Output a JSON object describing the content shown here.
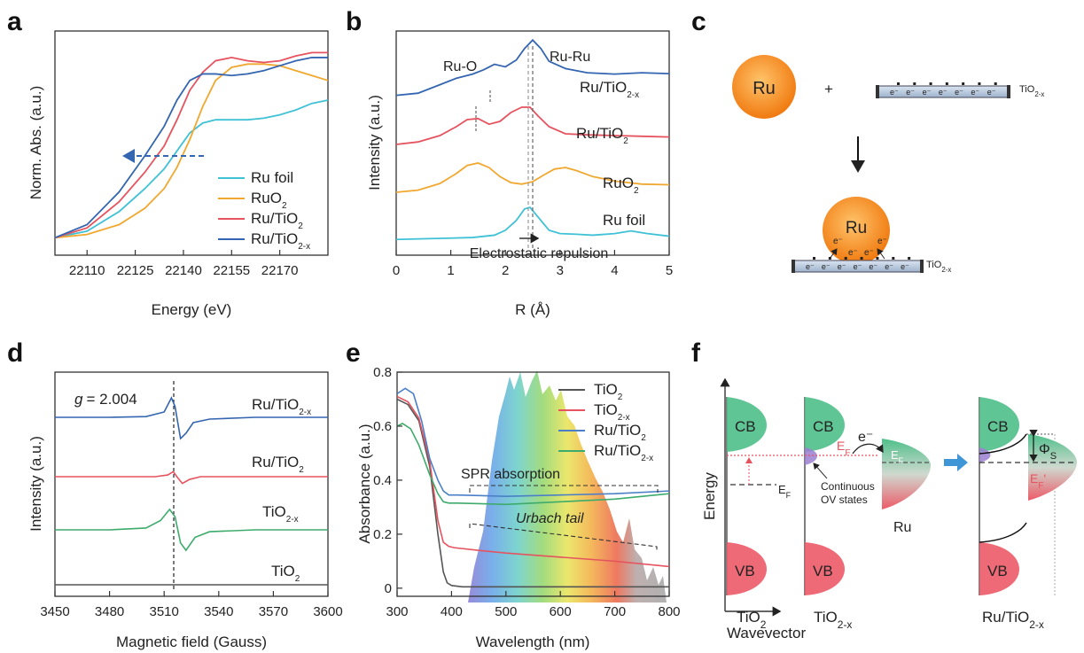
{
  "panel_labels": [
    "a",
    "b",
    "c",
    "d",
    "e",
    "f"
  ],
  "chart_data": [
    {
      "id": "a",
      "type": "line",
      "xlabel": "Energy (eV)",
      "ylabel": "Norm. Abs. (a.u.)",
      "xlim": [
        22100,
        22185
      ],
      "ylim": [
        0,
        1.3
      ],
      "xticks": [
        "22110",
        "22125",
        "22140",
        "22155",
        "22170"
      ],
      "legend_position": "bottom-right",
      "series": [
        {
          "name": "Ru foil",
          "name_sub": "",
          "color": "#3fc1d6",
          "x": [
            22100,
            22110,
            22120,
            22128,
            22134,
            22138,
            22142,
            22146,
            22150,
            22155,
            22160,
            22165,
            22170,
            22175,
            22180,
            22185
          ],
          "y": [
            0.02,
            0.06,
            0.18,
            0.32,
            0.44,
            0.55,
            0.66,
            0.72,
            0.74,
            0.74,
            0.74,
            0.75,
            0.77,
            0.8,
            0.84,
            0.86
          ]
        },
        {
          "name": "RuO",
          "name_sub": "2",
          "color": "#f0a830",
          "x": [
            22100,
            22110,
            22120,
            22128,
            22134,
            22138,
            22142,
            22146,
            22150,
            22155,
            22160,
            22165,
            22170,
            22175,
            22180,
            22185
          ],
          "y": [
            0.02,
            0.04,
            0.1,
            0.2,
            0.32,
            0.45,
            0.62,
            0.82,
            0.98,
            1.06,
            1.08,
            1.08,
            1.07,
            1.04,
            1.01,
            0.98
          ]
        },
        {
          "name": "Ru/TiO",
          "name_sub": "2",
          "color": "#e5535f",
          "x": [
            22100,
            22110,
            22120,
            22128,
            22134,
            22138,
            22142,
            22146,
            22150,
            22155,
            22160,
            22165,
            22170,
            22175,
            22180,
            22185
          ],
          "y": [
            0.02,
            0.08,
            0.24,
            0.42,
            0.58,
            0.74,
            0.92,
            1.03,
            1.1,
            1.12,
            1.1,
            1.09,
            1.1,
            1.13,
            1.15,
            1.15
          ]
        },
        {
          "name": "Ru/TiO",
          "name_sub": "2-x",
          "color": "#3465b0",
          "x": [
            22100,
            22110,
            22120,
            22128,
            22134,
            22138,
            22142,
            22146,
            22150,
            22155,
            22160,
            22165,
            22170,
            22175,
            22180,
            22185
          ],
          "y": [
            0.02,
            0.1,
            0.3,
            0.52,
            0.7,
            0.86,
            0.98,
            1.02,
            1.02,
            1.01,
            1.02,
            1.04,
            1.07,
            1.1,
            1.12,
            1.12
          ]
        }
      ],
      "annotations": [
        {
          "type": "arrow",
          "direction": "left",
          "color": "#3465b0",
          "x_from": 22147,
          "x_to": 22128,
          "y": 0.72
        }
      ]
    },
    {
      "id": "b",
      "type": "line",
      "xlabel": "R (Å)",
      "ylabel": "Intensity (a.u.)",
      "xlim": [
        0,
        5
      ],
      "xticks": [
        "0",
        "1",
        "2",
        "3",
        "4",
        "5"
      ],
      "series": [
        {
          "name": "Ru/TiO",
          "name_sub": "2-x",
          "color": "#3465b0",
          "x": [
            0,
            0.4,
            0.8,
            1.1,
            1.4,
            1.6,
            1.8,
            2.0,
            2.2,
            2.35,
            2.5,
            2.65,
            2.8,
            3.1,
            3.5,
            4.0,
            4.5,
            5.0
          ],
          "y": [
            0.05,
            0.1,
            0.3,
            0.45,
            0.55,
            0.65,
            0.78,
            0.72,
            0.88,
            1.15,
            1.35,
            1.15,
            0.85,
            0.68,
            0.58,
            0.55,
            0.58,
            0.56
          ]
        },
        {
          "name": "Ru/TiO",
          "name_sub": "2",
          "color": "#e5535f",
          "x": [
            0,
            0.4,
            0.8,
            1.1,
            1.3,
            1.5,
            1.7,
            1.9,
            2.1,
            2.3,
            2.45,
            2.6,
            2.8,
            3.1,
            3.5,
            4.0,
            4.5,
            5.0
          ],
          "y": [
            0.05,
            0.12,
            0.3,
            0.55,
            0.75,
            0.78,
            0.62,
            0.7,
            0.95,
            1.1,
            1.1,
            0.85,
            0.55,
            0.35,
            0.32,
            0.3,
            0.28,
            0.26
          ]
        },
        {
          "name": "RuO",
          "name_sub": "2",
          "color": "#f0a830",
          "x": [
            0,
            0.4,
            0.8,
            1.1,
            1.3,
            1.5,
            1.7,
            1.9,
            2.1,
            2.3,
            2.5,
            2.7,
            2.9,
            3.1,
            3.3,
            3.6,
            4.0,
            4.5,
            5.0
          ],
          "y": [
            0.03,
            0.1,
            0.32,
            0.65,
            0.92,
            1.0,
            0.85,
            0.55,
            0.35,
            0.3,
            0.38,
            0.6,
            0.8,
            0.85,
            0.75,
            0.55,
            0.4,
            0.3,
            0.28
          ]
        },
        {
          "name": "Ru foil",
          "name_sub": "",
          "color": "#3fc1d6",
          "x": [
            0,
            0.5,
            1.0,
            1.4,
            1.8,
            2.0,
            2.2,
            2.35,
            2.45,
            2.6,
            2.8,
            3.0,
            3.3,
            3.6,
            4.0,
            4.3,
            4.6,
            5.0
          ],
          "y": [
            0.02,
            0.04,
            0.06,
            0.08,
            0.15,
            0.3,
            0.6,
            0.95,
            1.0,
            0.7,
            0.3,
            0.2,
            0.18,
            0.15,
            0.2,
            0.28,
            0.2,
            0.12
          ]
        }
      ],
      "annotations": [
        "Ru-O",
        "Ru-Ru",
        "Electrostatic repulsion"
      ]
    },
    {
      "id": "d",
      "type": "line",
      "xlabel": "Magnetic field (Gauss)",
      "ylabel": "Intensity (a.u.)",
      "xlim": [
        3450,
        3600
      ],
      "xticks": [
        "3450",
        "3480",
        "3510",
        "3540",
        "3570",
        "3600"
      ],
      "g_value": "= 2.004",
      "g_symbol": "g",
      "series": [
        {
          "name": "Ru/TiO",
          "name_sub": "2-x",
          "color": "#3465b0",
          "x": [
            3450,
            3480,
            3500,
            3510,
            3514,
            3516,
            3519,
            3522,
            3526,
            3535,
            3560,
            3600
          ],
          "y": [
            0,
            0,
            0.02,
            0.15,
            0.55,
            0.3,
            -0.6,
            -0.45,
            -0.15,
            -0.05,
            0,
            0
          ]
        },
        {
          "name": "Ru/TiO",
          "name_sub": "2",
          "color": "#e5535f",
          "x": [
            3450,
            3480,
            3505,
            3512,
            3515,
            3517,
            3520,
            3524,
            3530,
            3560,
            3600
          ],
          "y": [
            0,
            0,
            0,
            0.05,
            0.15,
            0,
            -0.2,
            -0.08,
            0,
            0,
            0
          ]
        },
        {
          "name": "TiO",
          "name_sub": "2-x",
          "color": "#3dab6b",
          "x": [
            3450,
            3480,
            3500,
            3508,
            3513,
            3516,
            3519,
            3522,
            3527,
            3535,
            3560,
            3600
          ],
          "y": [
            0,
            0,
            0.05,
            0.25,
            0.55,
            0.35,
            -0.35,
            -0.55,
            -0.2,
            -0.05,
            0,
            0
          ]
        },
        {
          "name": "TiO",
          "name_sub": "2",
          "color": "#555555",
          "x": [
            3450,
            3600
          ],
          "y": [
            0,
            0
          ]
        }
      ]
    },
    {
      "id": "e",
      "type": "line",
      "xlabel": "Wavelength (nm)",
      "ylabel": "Absorbance (a.u.)",
      "xlim": [
        300,
        800
      ],
      "ylim": [
        -0.03,
        0.8
      ],
      "xticks": [
        "300",
        "400",
        "500",
        "600",
        "700",
        "800"
      ],
      "yticks": [
        "0",
        "0.2",
        "0.4",
        "0.6",
        "0.8"
      ],
      "yticks_values": [
        0,
        0.2,
        0.4,
        0.6,
        0.8
      ],
      "series": [
        {
          "name": "TiO",
          "name_sub": "2",
          "color": "#555555",
          "x": [
            300,
            320,
            340,
            360,
            375,
            385,
            392,
            400,
            420,
            500,
            600,
            700,
            800
          ],
          "y": [
            0.7,
            0.68,
            0.62,
            0.45,
            0.2,
            0.06,
            0.02,
            0.01,
            0.005,
            0.005,
            0.005,
            0.005,
            0.005
          ]
        },
        {
          "name": "TiO",
          "name_sub": "2-x",
          "color": "#e5535f",
          "x": [
            300,
            320,
            340,
            360,
            375,
            385,
            395,
            405,
            450,
            500,
            600,
            700,
            800
          ],
          "y": [
            0.71,
            0.69,
            0.63,
            0.47,
            0.25,
            0.17,
            0.155,
            0.15,
            0.14,
            0.13,
            0.115,
            0.1,
            0.08
          ]
        },
        {
          "name": "Ru/TiO",
          "name_sub": "2",
          "color": "#4a7fc8",
          "x": [
            300,
            315,
            330,
            345,
            360,
            375,
            385,
            395,
            410,
            450,
            500,
            600,
            700,
            800
          ],
          "y": [
            0.72,
            0.74,
            0.72,
            0.62,
            0.48,
            0.4,
            0.36,
            0.345,
            0.345,
            0.343,
            0.34,
            0.345,
            0.35,
            0.36
          ]
        },
        {
          "name": "Ru/TiO",
          "name_sub": "2-x",
          "color": "#3dab6b",
          "x": [
            300,
            310,
            325,
            340,
            360,
            375,
            385,
            395,
            410,
            450,
            500,
            600,
            700,
            800
          ],
          "y": [
            0.6,
            0.61,
            0.59,
            0.53,
            0.42,
            0.35,
            0.32,
            0.315,
            0.315,
            0.313,
            0.31,
            0.32,
            0.33,
            0.35
          ]
        }
      ],
      "annotations": [
        "SPR absorption",
        "Urbach tail"
      ]
    }
  ],
  "schematic_c": {
    "sphere_label": "Ru",
    "plus": "+",
    "electron": "e⁻",
    "substrate_label": "TiO",
    "substrate_sub": "2-x"
  },
  "diagram_f": {
    "y_axis": "Energy",
    "x_axis": "Wavevector",
    "cb": "CB",
    "vb": "VB",
    "tio2": "TiO",
    "tio2_sub": "2",
    "tio2x_sub": "2-x",
    "ef": "E",
    "ef_sub": "F",
    "ef_prime": "E",
    "ef_prime_sub": "F",
    "ef_prime_mark": "'",
    "electron": "e⁻",
    "continuous_1": "Continuous",
    "continuous_2": "OV states",
    "ru": "Ru",
    "phi": "Φ",
    "phi_sub": "S",
    "rutio": "Ru/TiO",
    "rutio_sub": "2-x"
  },
  "colors": {
    "cb": "#4fbf8a",
    "vb": "#ec5a67",
    "ru_sphere": "#f58a1f",
    "arrow": "#3f96d6"
  }
}
